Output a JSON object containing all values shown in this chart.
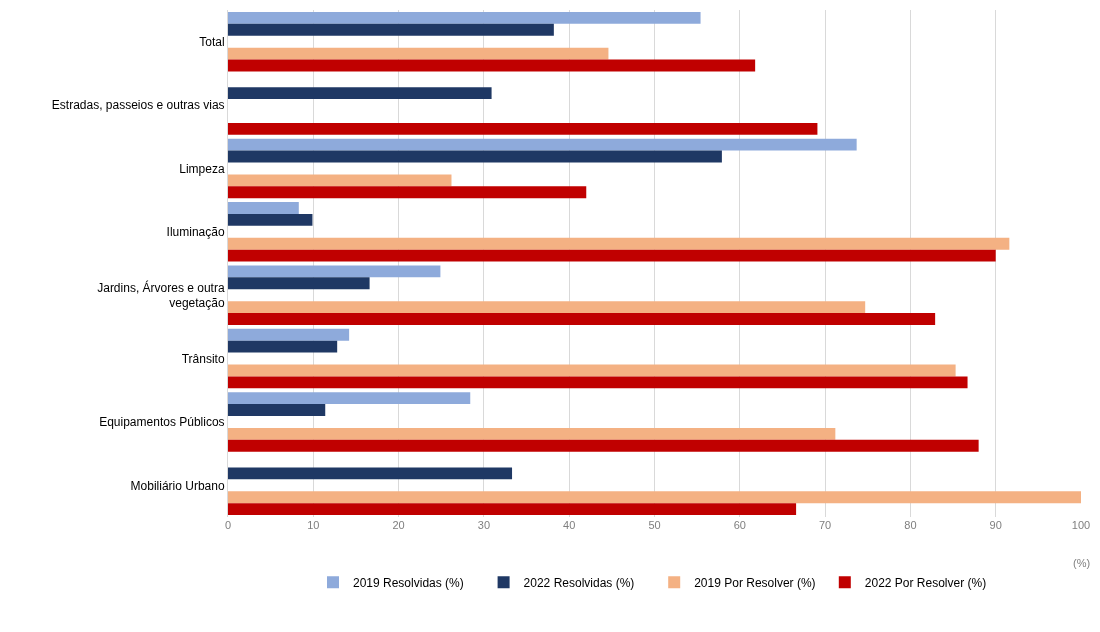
{
  "chart_data": {
    "type": "bar",
    "orientation": "horizontal",
    "xlabel": "(%)",
    "categories": [
      "Total",
      "Estradas, passeios e outras vias",
      "Limpeza",
      "Iluminação",
      "Jardins, Árvores e outra vegetação",
      "Trânsito",
      "Equipamentos Públicos",
      "Mobiliário Urbano"
    ],
    "series": [
      {
        "name": "2019 Resolvidas (%)",
        "color": "#8eaadb",
        "values": [
          55.4,
          null,
          73.7,
          8.3,
          24.9,
          14.2,
          28.4,
          null
        ]
      },
      {
        "name": "2022 Resolvidas (%)",
        "color": "#1f3864",
        "values": [
          38.2,
          30.9,
          57.9,
          9.9,
          16.6,
          12.8,
          11.4,
          33.3
        ]
      },
      {
        "color": "#a5a5a5",
        "values": [
          null,
          null,
          null,
          null,
          null,
          null,
          null,
          null
        ]
      },
      {
        "name": "2019 Por Resolver (%)",
        "color": "#f4b183",
        "values": [
          44.6,
          null,
          26.2,
          91.6,
          74.7,
          85.3,
          71.2,
          100
        ]
      },
      {
        "name": "2022 Por Resolver (%)",
        "color": "#c00000",
        "values": [
          61.8,
          69.1,
          42.0,
          90.0,
          82.9,
          86.7,
          88.0,
          66.6
        ]
      }
    ],
    "xlim": [
      0,
      100
    ],
    "xticks": [
      0,
      10,
      20,
      30,
      40,
      50,
      60,
      70,
      80,
      90,
      100
    ],
    "grid": "x",
    "legend": "bottom"
  }
}
